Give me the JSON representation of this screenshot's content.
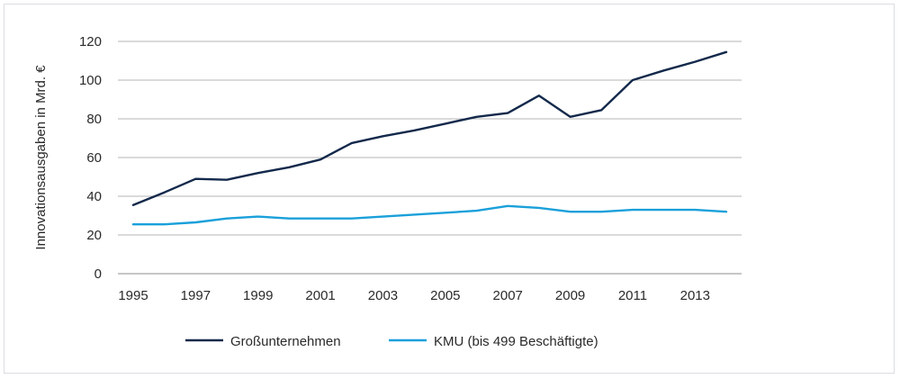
{
  "chart_data": {
    "type": "line",
    "title": "",
    "xlabel": "",
    "ylabel": "Innovationsausgaben in Mrd. €",
    "ylim": [
      0,
      120
    ],
    "yticks": [
      0,
      20,
      40,
      60,
      80,
      100,
      120
    ],
    "xlim": [
      1995,
      2014
    ],
    "xticks": [
      "1995",
      "1997",
      "1999",
      "2001",
      "2003",
      "2005",
      "2007",
      "2009",
      "2011",
      "2013"
    ],
    "grid": true,
    "legend_position": "bottom",
    "x": [
      1995,
      1996,
      1997,
      1998,
      1999,
      2000,
      2001,
      2002,
      2003,
      2004,
      2005,
      2006,
      2007,
      2008,
      2009,
      2010,
      2011,
      2012,
      2013,
      2014
    ],
    "series": [
      {
        "name": "Großunternehmen",
        "color": "#13294b",
        "values": [
          35.5,
          42,
          49,
          48.5,
          52,
          55,
          59,
          67.5,
          71,
          74,
          77.5,
          81,
          83,
          92,
          81,
          84.5,
          100,
          105,
          109.5,
          114.5
        ]
      },
      {
        "name": "KMU (bis 499 Beschäftigte)",
        "color": "#1aa0da",
        "values": [
          25.5,
          25.5,
          26.5,
          28.5,
          29.5,
          28.5,
          28.5,
          28.5,
          29.5,
          30.5,
          31.5,
          32.5,
          35,
          34,
          32,
          32,
          33,
          33,
          33,
          32
        ]
      }
    ]
  }
}
